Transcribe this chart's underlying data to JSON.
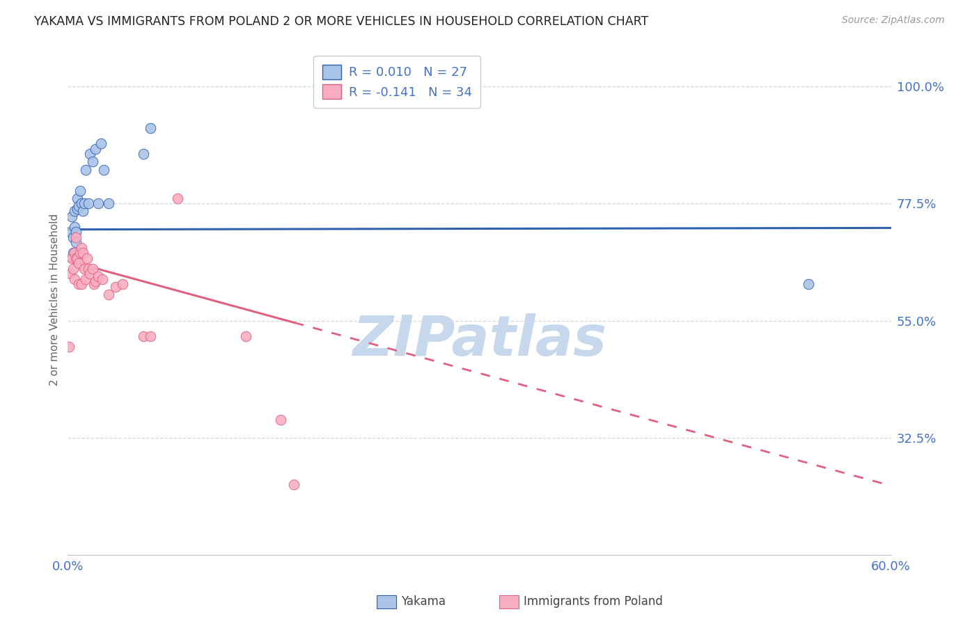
{
  "title": "YAKAMA VS IMMIGRANTS FROM POLAND 2 OR MORE VEHICLES IN HOUSEHOLD CORRELATION CHART",
  "source": "Source: ZipAtlas.com",
  "ylabel": "2 or more Vehicles in Household",
  "ytick_labels": [
    "100.0%",
    "77.5%",
    "55.0%",
    "32.5%"
  ],
  "ytick_values": [
    1.0,
    0.775,
    0.55,
    0.325
  ],
  "xmin": 0.0,
  "xmax": 0.6,
  "ymin": 0.1,
  "ymax": 1.08,
  "legend_label1": "Yakama",
  "legend_label2": "Immigrants from Poland",
  "R1": 0.01,
  "N1": 27,
  "R2": -0.141,
  "N2": 34,
  "color_blue": "#aac4e8",
  "color_pink": "#f8aec0",
  "line_color_blue": "#3060b0",
  "line_color_pink": "#e06080",
  "grid_color": "#cccccc",
  "background_color": "#ffffff",
  "title_color": "#222222",
  "source_color": "#999999",
  "axis_label_color": "#4472c4",
  "yakama_x": [
    0.002,
    0.003,
    0.004,
    0.004,
    0.005,
    0.005,
    0.006,
    0.006,
    0.007,
    0.007,
    0.008,
    0.009,
    0.01,
    0.011,
    0.012,
    0.013,
    0.015,
    0.016,
    0.018,
    0.02,
    0.022,
    0.024,
    0.026,
    0.03,
    0.055,
    0.06,
    0.54
  ],
  "yakama_y": [
    0.72,
    0.75,
    0.68,
    0.71,
    0.76,
    0.73,
    0.7,
    0.72,
    0.785,
    0.765,
    0.77,
    0.8,
    0.775,
    0.76,
    0.775,
    0.84,
    0.775,
    0.87,
    0.855,
    0.88,
    0.775,
    0.89,
    0.84,
    0.775,
    0.87,
    0.92,
    0.62
  ],
  "poland_x": [
    0.001,
    0.002,
    0.003,
    0.004,
    0.005,
    0.005,
    0.006,
    0.006,
    0.007,
    0.008,
    0.008,
    0.009,
    0.01,
    0.01,
    0.011,
    0.012,
    0.013,
    0.014,
    0.015,
    0.016,
    0.018,
    0.019,
    0.02,
    0.022,
    0.025,
    0.03,
    0.035,
    0.04,
    0.055,
    0.06,
    0.08,
    0.13,
    0.155,
    0.165
  ],
  "poland_y": [
    0.5,
    0.64,
    0.67,
    0.65,
    0.68,
    0.63,
    0.67,
    0.71,
    0.67,
    0.66,
    0.62,
    0.68,
    0.69,
    0.62,
    0.68,
    0.65,
    0.63,
    0.67,
    0.65,
    0.64,
    0.65,
    0.62,
    0.625,
    0.635,
    0.63,
    0.6,
    0.615,
    0.62,
    0.52,
    0.52,
    0.785,
    0.52,
    0.36,
    0.235
  ],
  "watermark_text": "ZIPatlas",
  "watermark_color": "#c8d8ec",
  "blue_line_y_intercept": 0.725,
  "blue_line_slope": 0.005,
  "pink_line_y_intercept": 0.665,
  "pink_line_slope": -0.72
}
